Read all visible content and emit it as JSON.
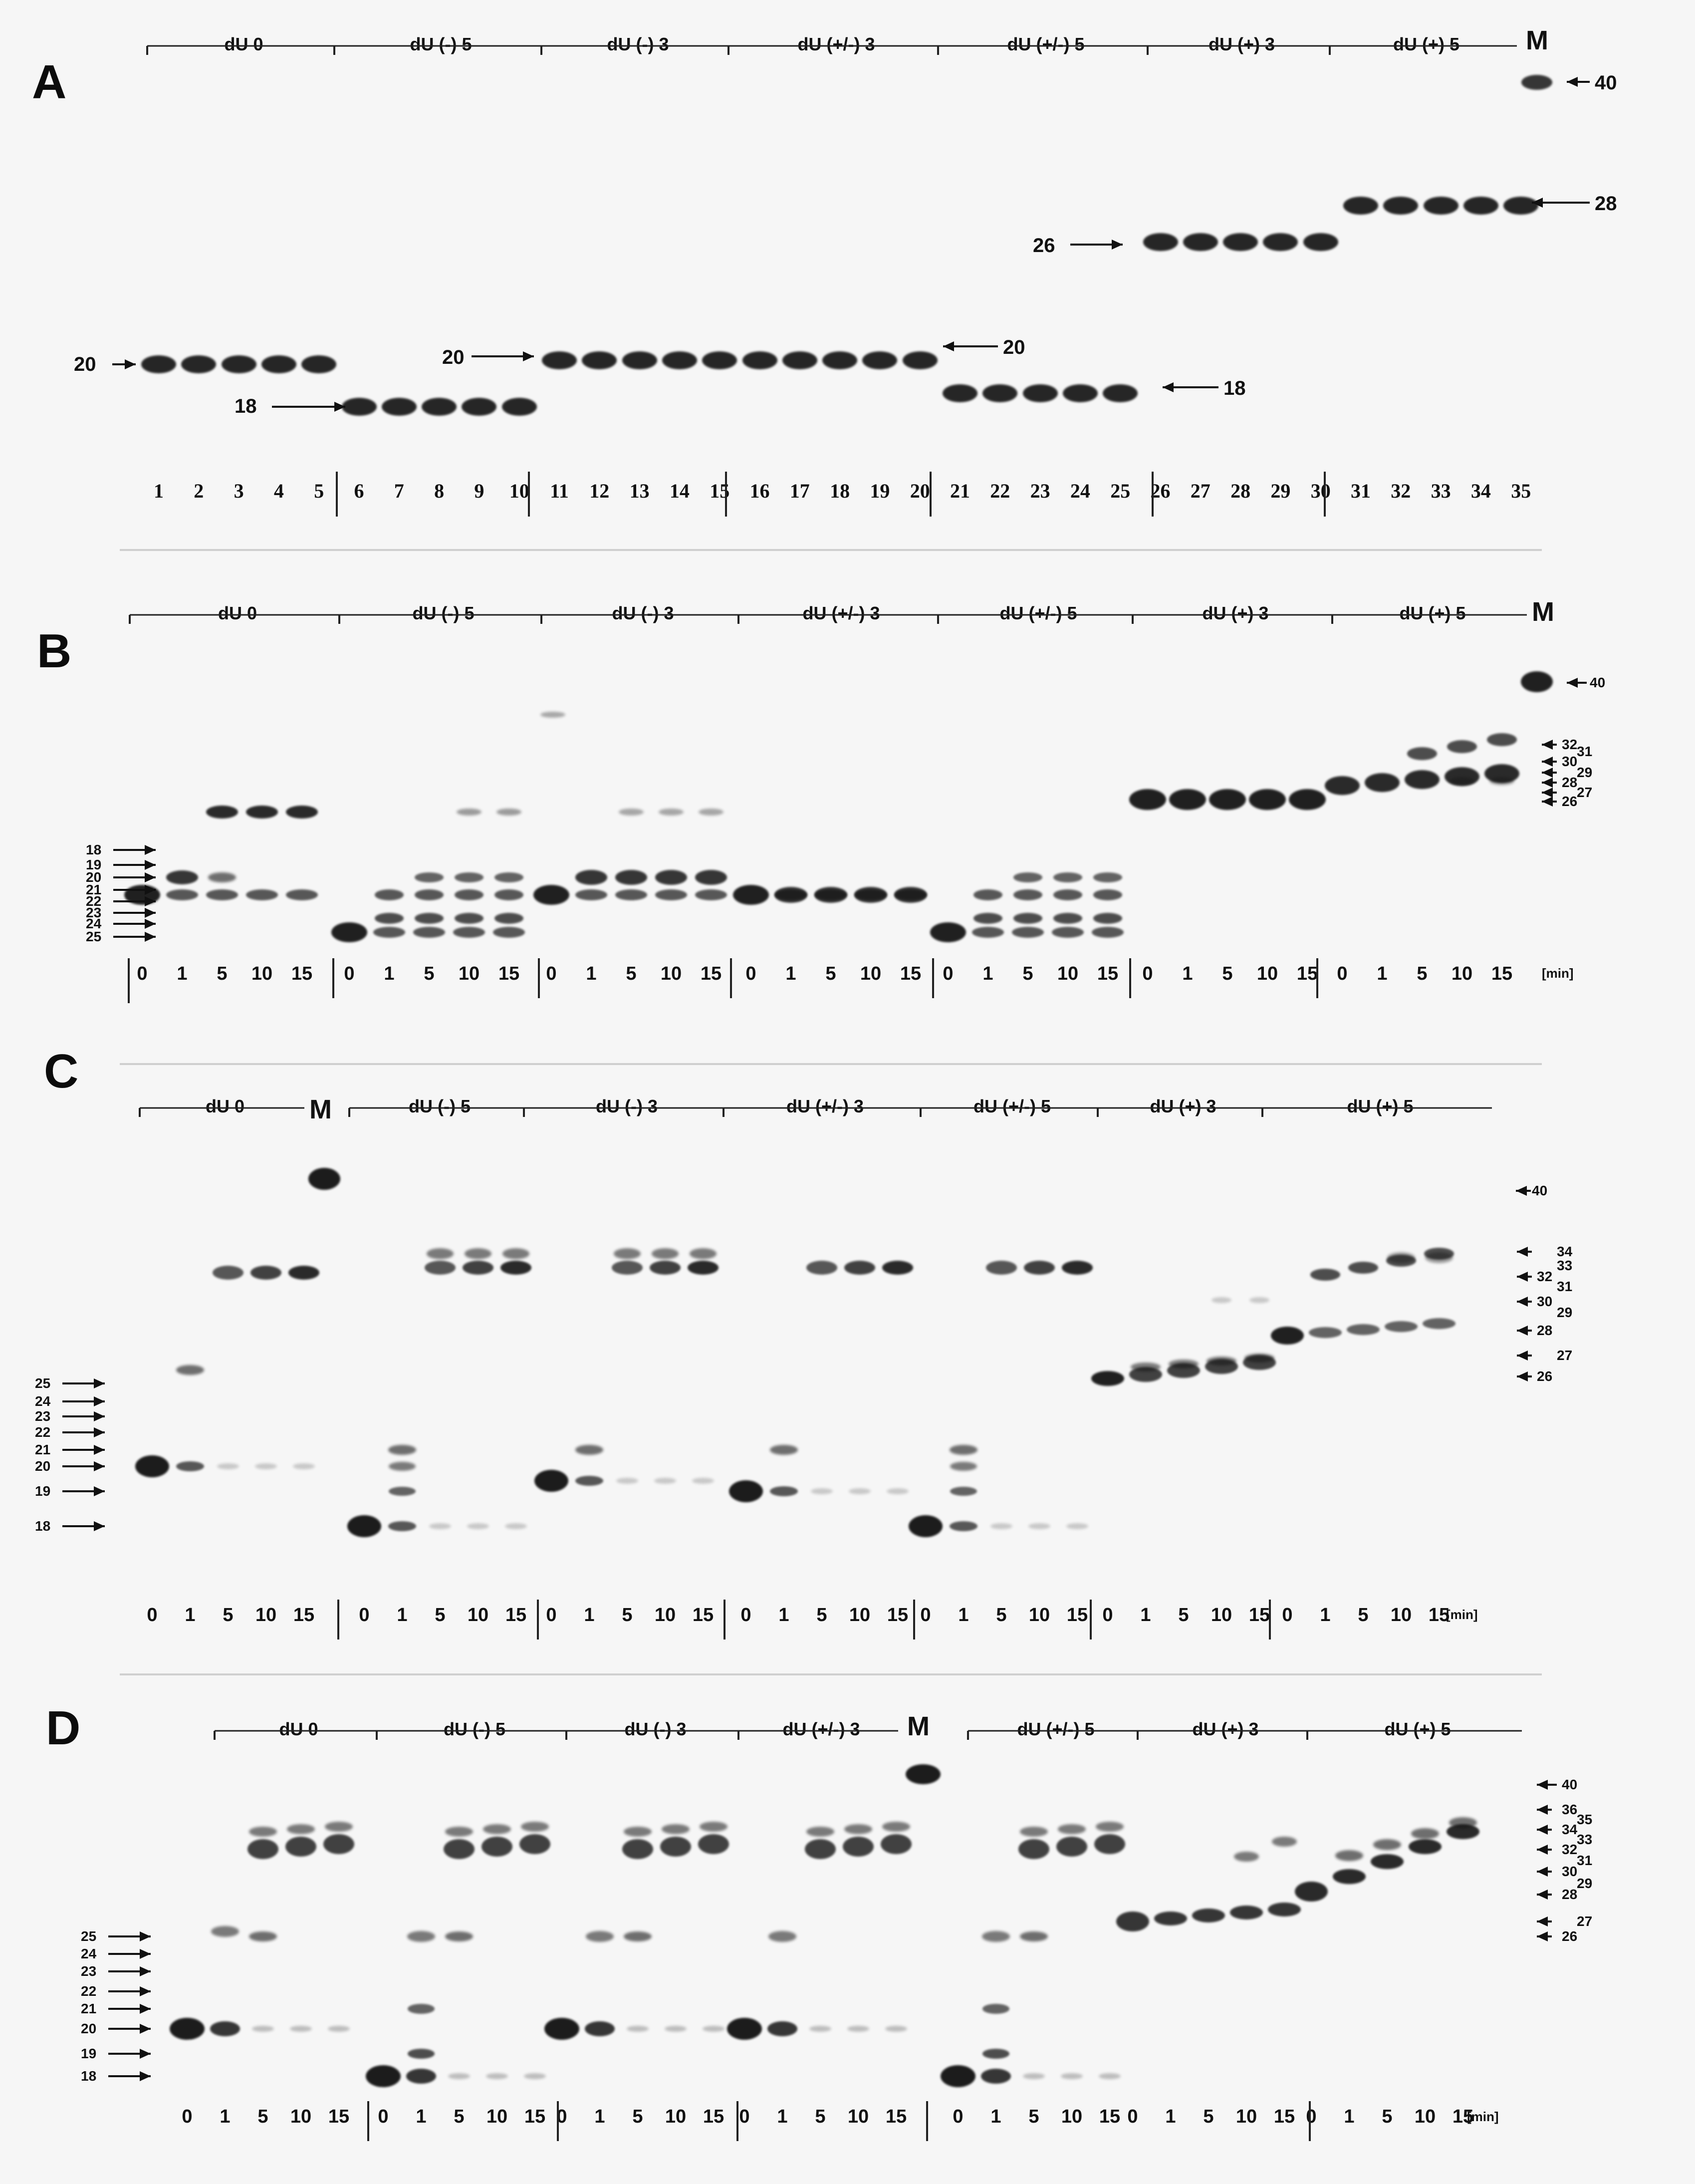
{
  "groups": [
    "dU 0",
    "dU (-) 5",
    "dU (-) 3",
    "dU (+/-) 3",
    "dU (+/-) 5",
    "dU (+) 3",
    "dU (+) 5"
  ],
  "marker": "M",
  "colors": {
    "band": "#151515",
    "background": "#f6f6f6",
    "separator": "#cfcfcf"
  },
  "panelA": {
    "letter": "A",
    "lane_numbers": [
      "1",
      "2",
      "3",
      "4",
      "5",
      "6",
      "7",
      "8",
      "9",
      "10",
      "11",
      "12",
      "13",
      "14",
      "15",
      "16",
      "17",
      "18",
      "19",
      "20",
      "21",
      "22",
      "23",
      "24",
      "25",
      "26",
      "27",
      "28",
      "29",
      "30",
      "31",
      "32",
      "33",
      "34",
      "35"
    ],
    "size_labels": [
      "20",
      "18",
      "20",
      "20",
      "18",
      "26",
      "28",
      "40"
    ]
  },
  "panelB": {
    "letter": "B",
    "timepoints": [
      "0",
      "1",
      "5",
      "10",
      "15"
    ],
    "unit": "[min]",
    "left_ladder": [
      "25",
      "24",
      "23",
      "22",
      "21",
      "20",
      "19",
      "18"
    ],
    "right_ladder": [
      "40",
      "32",
      "31",
      "30",
      "29",
      "28",
      "27",
      "26"
    ]
  },
  "panelC": {
    "letter": "C",
    "timepoints": [
      "0",
      "1",
      "5",
      "10",
      "15"
    ],
    "unit": "[min]",
    "left_ladder": [
      "25",
      "24",
      "23",
      "22",
      "21",
      "20",
      "19",
      "18"
    ],
    "right_ladder": [
      "40",
      "34",
      "33",
      "32",
      "31",
      "30",
      "29",
      "28",
      "27",
      "26"
    ]
  },
  "panelD": {
    "letter": "D",
    "timepoints": [
      "0",
      "1",
      "5",
      "10",
      "15"
    ],
    "unit": "[min]",
    "left_ladder": [
      "25",
      "24",
      "23",
      "22",
      "21",
      "20",
      "19",
      "18"
    ],
    "right_ladder": [
      "40",
      "36",
      "35",
      "34",
      "33",
      "32",
      "31",
      "30",
      "29",
      "28",
      "27",
      "26"
    ]
  }
}
